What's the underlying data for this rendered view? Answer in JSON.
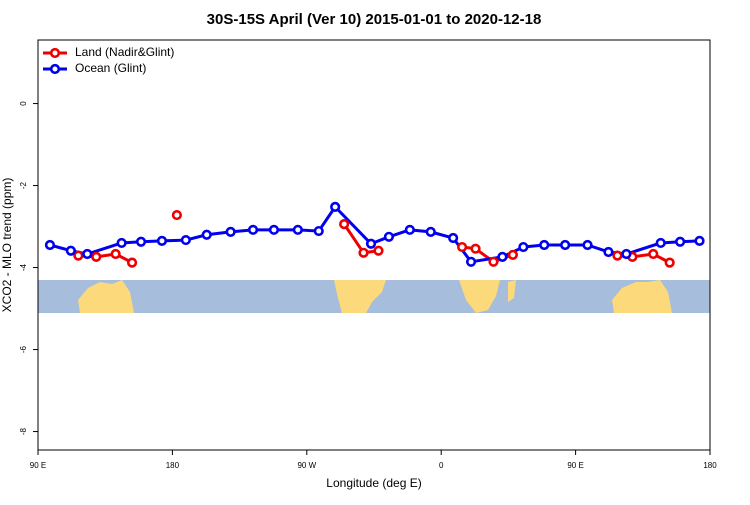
{
  "chart_data": {
    "type": "line",
    "title": "30S-15S April (Ver 10)   2015-01-01 to 2020-12-18",
    "x_label": "Longitude (deg E)",
    "y_label": "XCO2 - MLO trend (ppm)",
    "xlim": [
      90,
      540
    ],
    "ylim": [
      -8.45,
      1.55
    ],
    "xticks": [
      {
        "value": 90,
        "label": "90 E"
      },
      {
        "value": 180,
        "label": "180"
      },
      {
        "value": 270,
        "label": "90 W"
      },
      {
        "value": 360,
        "label": "0"
      },
      {
        "value": 450,
        "label": "90 E"
      },
      {
        "value": 540,
        "label": "180"
      }
    ],
    "yticks": [
      0,
      -2,
      -4,
      -6,
      -8
    ],
    "legend_position": "top-left",
    "series": [
      {
        "name": "Land (Nadir&Glint)",
        "color": "#ee0000",
        "x": [
          117,
          129,
          142,
          153,
          null,
          183,
          null,
          295,
          308,
          318,
          null,
          374,
          383,
          395,
          408,
          null,
          478,
          488,
          502,
          513
        ],
        "values": [
          -3.71,
          -3.74,
          -3.67,
          -3.88,
          null,
          -2.72,
          null,
          -2.94,
          -3.64,
          -3.59,
          null,
          -3.5,
          -3.54,
          -3.86,
          -3.69,
          null,
          -3.71,
          -3.74,
          -3.67,
          -3.88
        ]
      },
      {
        "name": "Ocean (Glint)",
        "color": "#0000ee",
        "x": [
          98,
          112,
          123,
          146,
          159,
          173,
          189,
          203,
          219,
          234,
          248,
          264,
          278,
          289,
          313,
          325,
          339,
          353,
          368,
          380,
          401,
          415,
          429,
          443,
          458,
          472,
          484,
          507,
          520,
          533
        ],
        "values": [
          -3.45,
          -3.59,
          -3.67,
          -3.4,
          -3.37,
          -3.35,
          -3.33,
          -3.2,
          -3.13,
          -3.08,
          -3.08,
          -3.08,
          -3.11,
          -2.52,
          -3.42,
          -3.25,
          -3.08,
          -3.13,
          -3.28,
          -3.86,
          -3.74,
          -3.5,
          -3.45,
          -3.45,
          -3.45,
          -3.62,
          -3.67,
          -3.4,
          -3.37,
          -3.35
        ]
      }
    ]
  }
}
